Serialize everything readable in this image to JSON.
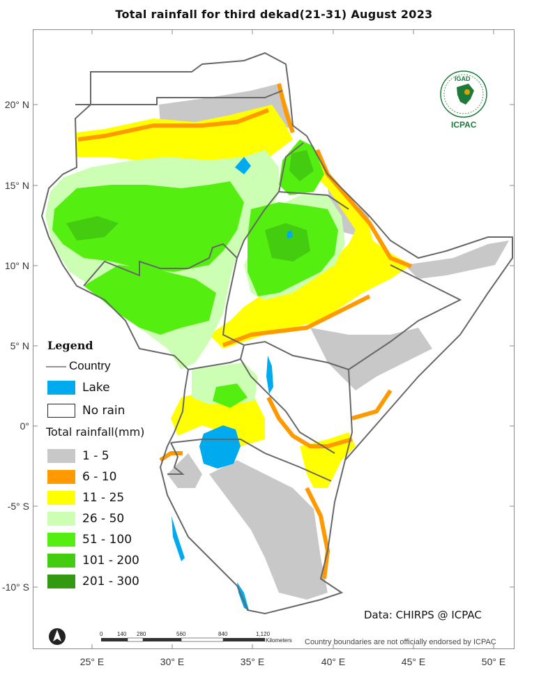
{
  "title": "Total rainfall  for  third dekad(21-31)  August  2023",
  "latitude_labels": [
    "20° N",
    "15° N",
    "10° N",
    "5° N",
    "0°",
    "-5° S",
    "-10° S"
  ],
  "longitude_labels": [
    "25° E",
    "30° E",
    "35° E",
    "40° E",
    "45° E",
    "50° E"
  ],
  "legend": {
    "title": "Legend",
    "country_label": "Country",
    "lake_label": "Lake",
    "no_rain_label": "No rain",
    "rainfall_title": "Total rainfall(mm)",
    "classes": [
      {
        "label": "1 - 5",
        "color": "#c8c8c8"
      },
      {
        "label": "6 - 10",
        "color": "#ff9900"
      },
      {
        "label": "11 - 25",
        "color": "#ffff00"
      },
      {
        "label": "26 - 50",
        "color": "#ccffb3"
      },
      {
        "label": "51 - 100",
        "color": "#55ee11"
      },
      {
        "label": "101 - 200",
        "color": "#44cc11"
      },
      {
        "label": "201 - 300",
        "color": "#339911"
      }
    ],
    "lake_color": "#00aaee"
  },
  "scale_bar": {
    "ticks": [
      "0",
      "140",
      "280",
      "560",
      "840",
      "1,120"
    ],
    "unit": "Kilometers"
  },
  "data_credit": "Data: CHIRPS @ ICPAC",
  "disclaimer": "Country boundaries are not officially endorsed by ICPAC",
  "logo": {
    "top_text": "IGAD",
    "bottom_text": "ICPAC"
  }
}
